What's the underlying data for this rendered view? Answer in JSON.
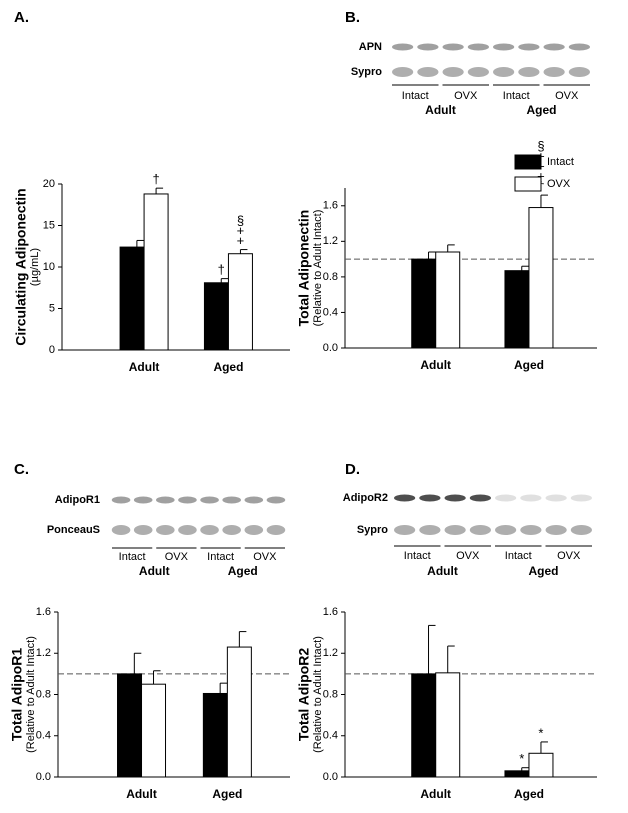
{
  "chart_data": [
    {
      "type": "bar",
      "panel_label": "A.",
      "y_label": "Circulating Adiponectin",
      "y_sublabel": "(µg/mL)",
      "categories": [
        "Adult",
        "Aged"
      ],
      "ylim": [
        0,
        20
      ],
      "yticks": [
        0,
        5,
        10,
        15,
        20
      ],
      "series": [
        {
          "color": "#000000",
          "values": [
            12.4,
            8.1
          ],
          "errors": [
            0.8,
            0.5
          ],
          "annotations": [
            null,
            [
              "†"
            ]
          ]
        },
        {
          "color": "#ffffff",
          "values": [
            18.8,
            11.6
          ],
          "errors": [
            0.7,
            0.5
          ],
          "annotations": [
            [
              "†"
            ],
            [
              "§",
              "+",
              "+"
            ]
          ]
        }
      ]
    },
    {
      "type": "bar",
      "panel_label": "B.",
      "y_label": "Total Adiponectin",
      "y_sublabel": "(Relative to Adult Intact)",
      "categories": [
        "Adult",
        "Aged"
      ],
      "ylim": [
        0,
        1.8
      ],
      "yticks": [
        {
          "value": 0,
          "label": "0.0"
        },
        0.4,
        0.8,
        1.2,
        1.6
      ],
      "reference_line": 1,
      "legend": "top-right",
      "blot": {
        "rows": [
          "APN",
          "Sypro"
        ],
        "lanes": [
          "Intact",
          "OVX",
          "Intact",
          "OVX"
        ],
        "groups": [
          "Adult",
          "Aged"
        ]
      },
      "series": [
        {
          "name": "Intact",
          "color": "#000000",
          "values": [
            1.0,
            0.87
          ],
          "errors": [
            0.08,
            0.05
          ],
          "annotations": [
            null,
            null
          ]
        },
        {
          "name": "OVX",
          "color": "#ffffff",
          "values": [
            1.08,
            1.58
          ],
          "errors": [
            0.08,
            0.14
          ],
          "annotations": [
            null,
            [
              "§",
              "+",
              "+",
              "+",
              "†"
            ]
          ]
        }
      ]
    },
    {
      "type": "bar",
      "panel_label": "C.",
      "y_label": "Total AdipoR1",
      "y_sublabel": "(Relative to Adult Intact)",
      "categories": [
        "Adult",
        "Aged"
      ],
      "ylim": [
        0,
        1.6
      ],
      "yticks": [
        {
          "value": 0,
          "label": "0.0"
        },
        0.4,
        0.8,
        1.2,
        1.6
      ],
      "reference_line": 1,
      "blot": {
        "rows": [
          "AdipoR1",
          "PonceauS"
        ],
        "lanes": [
          "Intact",
          "OVX",
          "Intact",
          "OVX"
        ],
        "groups": [
          "Adult",
          "Aged"
        ]
      },
      "series": [
        {
          "color": "#000000",
          "values": [
            1.0,
            0.81
          ],
          "errors": [
            0.2,
            0.1
          ],
          "annotations": [
            null,
            null
          ]
        },
        {
          "color": "#ffffff",
          "values": [
            0.9,
            1.26
          ],
          "errors": [
            0.13,
            0.15
          ],
          "annotations": [
            null,
            null
          ]
        }
      ]
    },
    {
      "type": "bar",
      "panel_label": "D.",
      "y_label": "Total AdipoR2",
      "y_sublabel": "(Relative to Adult Intact)",
      "categories": [
        "Adult",
        "Aged"
      ],
      "ylim": [
        0,
        1.6
      ],
      "yticks": [
        {
          "value": 0,
          "label": "0.0"
        },
        0.4,
        0.8,
        1.2,
        1.6
      ],
      "reference_line": 1,
      "blot": {
        "rows": [
          "AdipoR2",
          "Sypro"
        ],
        "lanes": [
          "Intact",
          "OVX",
          "Intact",
          "OVX"
        ],
        "groups": [
          "Adult",
          "Aged"
        ]
      },
      "series": [
        {
          "color": "#000000",
          "values": [
            1.0,
            0.06
          ],
          "errors": [
            0.47,
            0.03
          ],
          "annotations": [
            null,
            [
              "*"
            ]
          ]
        },
        {
          "color": "#ffffff",
          "values": [
            1.01,
            0.23
          ],
          "errors": [
            0.26,
            0.11
          ],
          "annotations": [
            null,
            [
              "*"
            ]
          ]
        }
      ]
    }
  ]
}
